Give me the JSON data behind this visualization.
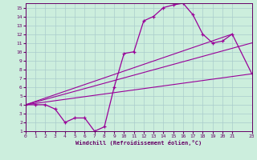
{
  "xlabel": "Windchill (Refroidissement éolien,°C)",
  "bg_color": "#cceedd",
  "line_color": "#990099",
  "xlim": [
    0,
    23
  ],
  "ylim": [
    1,
    15.5
  ],
  "xticks": [
    0,
    1,
    2,
    3,
    4,
    5,
    6,
    7,
    8,
    9,
    10,
    11,
    12,
    13,
    14,
    15,
    16,
    17,
    18,
    19,
    20,
    21,
    23
  ],
  "yticks": [
    1,
    2,
    3,
    4,
    5,
    6,
    7,
    8,
    9,
    10,
    11,
    12,
    13,
    14,
    15
  ],
  "grid_color": "#aacccc",
  "curve_x": [
    0,
    1,
    2,
    3,
    4,
    5,
    6,
    7,
    8,
    9,
    10,
    11,
    12,
    13,
    14,
    15,
    16,
    17,
    18,
    19,
    20,
    21,
    23
  ],
  "curve_y": [
    4,
    4,
    4,
    3.5,
    2,
    2.5,
    2.5,
    1,
    1.5,
    6,
    9.8,
    10,
    13.5,
    14,
    15,
    15.3,
    15.5,
    14.2,
    12,
    11,
    11.2,
    12.0,
    7.5
  ],
  "line1_x": [
    0,
    23
  ],
  "line1_y": [
    4,
    7.5
  ],
  "line2_x": [
    0,
    21
  ],
  "line2_y": [
    4,
    12.0
  ],
  "line3_x": [
    0,
    23
  ],
  "line3_y": [
    4,
    11.0
  ]
}
